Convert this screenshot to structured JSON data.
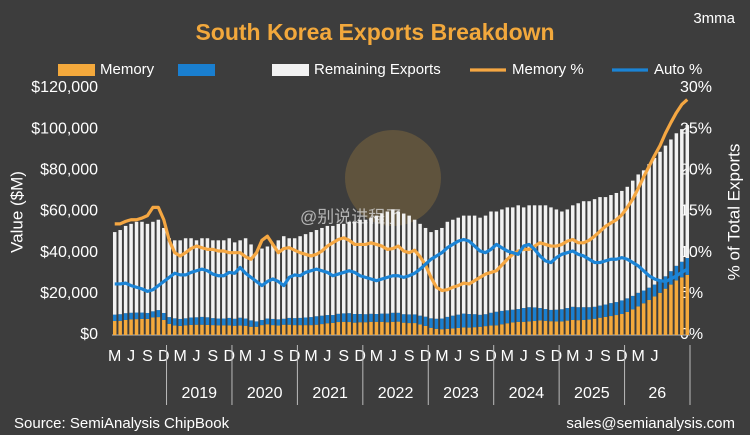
{
  "chart_data": {
    "type": "bar",
    "title": "South Korea Exports Breakdown",
    "subtitle": "3mma",
    "y_label": "Value ($M)",
    "y2_label": "% of Total Exports",
    "source": "Source: SemiAnalysis ChipBook",
    "contact": "sales@semianalysis.com",
    "watermark": "@别说进程了",
    "stacked": true,
    "grid": false,
    "categories": [
      "M",
      null,
      null,
      "J",
      null,
      null,
      "S",
      null,
      null,
      "D",
      null,
      null,
      "M",
      null,
      null,
      "J",
      null,
      null,
      "S",
      null,
      null,
      "D",
      null,
      null,
      "M",
      null,
      null,
      "J",
      null,
      null,
      "S",
      null,
      null,
      "D",
      null,
      null,
      "M",
      null,
      null,
      "J",
      null,
      null,
      "S",
      null,
      null,
      "D",
      null,
      null,
      "M",
      null,
      null,
      "J",
      null,
      null,
      "S",
      null,
      null,
      "D",
      null,
      null,
      "M",
      null,
      null,
      "J",
      null,
      null,
      "S",
      null,
      null,
      "D",
      null,
      null,
      "M",
      null,
      null,
      "J",
      null,
      null,
      "S",
      null,
      null,
      "D",
      null,
      null,
      "M",
      null,
      null,
      "J",
      null,
      null,
      "S",
      null,
      null,
      "D",
      null,
      null,
      "M",
      null,
      null,
      "J",
      null,
      null,
      null,
      null,
      null,
      null
    ],
    "year_labels": [
      "2019",
      "2020",
      "2021",
      "2022",
      "2023",
      "2024",
      "2025",
      "26"
    ],
    "ylim": [
      0,
      120000
    ],
    "yticks": [
      {
        "value": 0,
        "label": "$0"
      },
      {
        "value": 20000,
        "label": "$20,000"
      },
      {
        "value": 40000,
        "label": "$40,000"
      },
      {
        "value": 60000,
        "label": "$60,000"
      },
      {
        "value": 80000,
        "label": "$80,000"
      },
      {
        "value": 100000,
        "label": "$100,000"
      },
      {
        "value": 120000,
        "label": "$120,000"
      }
    ],
    "y2lim": [
      0,
      30
    ],
    "y2ticks": [
      {
        "value": 0,
        "label": "0%"
      },
      {
        "value": 5,
        "label": "5%"
      },
      {
        "value": 10,
        "label": "10%"
      },
      {
        "value": 15,
        "label": "15%"
      },
      {
        "value": 20,
        "label": "20%"
      },
      {
        "value": 25,
        "label": "25%"
      },
      {
        "value": 30,
        "label": "30%"
      }
    ],
    "series": [
      {
        "name": "Memory",
        "color": "#f4a93c",
        "values": [
          6800,
          6900,
          7300,
          7600,
          7700,
          7800,
          7800,
          8500,
          8700,
          7300,
          5400,
          4600,
          4400,
          4700,
          4900,
          5000,
          5000,
          4900,
          4800,
          4700,
          4700,
          4700,
          4500,
          4600,
          4500,
          4000,
          4000,
          4800,
          5200,
          4800,
          4600,
          5000,
          5000,
          4800,
          4800,
          4800,
          4800,
          5000,
          5300,
          5700,
          5900,
          6300,
          6400,
          6300,
          6000,
          6200,
          6200,
          6400,
          6400,
          6400,
          6200,
          6400,
          6500,
          6000,
          5800,
          5800,
          5100,
          4400,
          3500,
          3000,
          2800,
          3000,
          3200,
          3400,
          3700,
          3600,
          3800,
          4000,
          4300,
          4600,
          4700,
          5200,
          5700,
          6100,
          6400,
          6400,
          6600,
          6800,
          7100,
          6900,
          6700,
          6600,
          6600,
          7000,
          7300,
          7200,
          7300,
          7500,
          7900,
          8400,
          8800,
          9200,
          9700,
          10200,
          11200,
          12400,
          13900,
          15400,
          17000,
          18700,
          20500,
          22500,
          24500,
          26500,
          28000,
          29200
        ]
      },
      {
        "name": null,
        "color": "#1a7fd0",
        "values": [
          3100,
          3200,
          3300,
          3200,
          3200,
          3100,
          2900,
          3000,
          3400,
          3400,
          3300,
          3500,
          3400,
          3400,
          3600,
          3600,
          3800,
          3700,
          3400,
          3300,
          3300,
          3600,
          3400,
          3800,
          3500,
          3100,
          2600,
          2500,
          2800,
          3000,
          3000,
          2900,
          3300,
          3400,
          3500,
          3700,
          3900,
          4100,
          4100,
          4000,
          3800,
          4000,
          4100,
          4300,
          4200,
          4000,
          3900,
          3900,
          3800,
          4000,
          4200,
          4400,
          4300,
          4100,
          4200,
          4200,
          4300,
          4500,
          4600,
          4900,
          5200,
          5800,
          6200,
          6500,
          6700,
          6600,
          6300,
          5800,
          5800,
          6200,
          6600,
          6500,
          6300,
          6200,
          6200,
          6700,
          6900,
          6600,
          6000,
          5700,
          5500,
          5700,
          5900,
          6100,
          6400,
          6300,
          6200,
          6000,
          5800,
          5900,
          6000,
          6300,
          6300,
          6600,
          6600,
          6600,
          6600,
          6200,
          6000,
          5800,
          5900,
          6000,
          6500,
          7100,
          7600,
          8200
        ]
      },
      {
        "name": "Remaining Exports",
        "color": "#f2f2f2",
        "values": [
          40100,
          40900,
          42400,
          43200,
          44100,
          44100,
          43300,
          43500,
          43900,
          41300,
          38300,
          37900,
          38200,
          38900,
          38500,
          37400,
          38200,
          38400,
          37800,
          38000,
          38000,
          38700,
          37100,
          37600,
          39000,
          36900,
          33400,
          34700,
          35000,
          36200,
          38400,
          40100,
          38700,
          38800,
          39700,
          40500,
          41300,
          41900,
          42600,
          43300,
          43300,
          43700,
          43500,
          44400,
          44800,
          45800,
          45900,
          46700,
          47800,
          48600,
          49600,
          50200,
          49200,
          48900,
          48000,
          46000,
          44600,
          43100,
          41900,
          43100,
          44000,
          46200,
          46600,
          47100,
          47600,
          47800,
          47900,
          47200,
          47900,
          49200,
          48700,
          49300,
          50000,
          49700,
          50400,
          48900,
          49500,
          49600,
          49900,
          50400,
          49800,
          48700,
          47500,
          47900,
          49300,
          50500,
          51500,
          51500,
          52300,
          52700,
          52200,
          52500,
          53000,
          53200,
          54200,
          56000,
          57500,
          58400,
          60000,
          61500,
          62600,
          63500,
          64000,
          64400,
          64400,
          64600
        ]
      },
      {
        "name": "Memory %",
        "color": "#f5a742",
        "type": "line",
        "axis": "y2",
        "values": [
          13.5,
          13.5,
          13.8,
          14,
          14,
          14.2,
          14.5,
          15.5,
          15.5,
          14,
          11.5,
          10,
          9.6,
          10,
          10.5,
          10.8,
          10.6,
          10.4,
          10.4,
          10.2,
          10.2,
          10,
          10,
          10,
          9.5,
          9.2,
          10,
          11.5,
          12,
          11,
          10,
          10.5,
          10.6,
          10.3,
          10,
          9.8,
          9.6,
          9.8,
          10.2,
          10.8,
          11.2,
          11.6,
          11.8,
          11.5,
          11,
          11,
          11,
          11.2,
          11,
          10.8,
          10.4,
          10.5,
          10.8,
          10.2,
          10,
          10.3,
          9.5,
          8.5,
          7,
          5.8,
          5.4,
          5.5,
          5.8,
          6,
          6.3,
          6.2,
          6.6,
          7,
          7.4,
          7.6,
          7.8,
          8.5,
          9.2,
          9.8,
          10.2,
          10.4,
          10.4,
          10.8,
          11.2,
          11,
          10.8,
          10.8,
          11,
          11.4,
          11.6,
          11.2,
          11.2,
          11.5,
          12,
          12.6,
          13.2,
          13.6,
          14,
          14.6,
          15.5,
          16.5,
          17.8,
          19.2,
          20.5,
          21.8,
          23,
          24.5,
          25.8,
          27,
          28,
          28.6
        ]
      },
      {
        "name": "Auto %",
        "color": "#1b84d6",
        "type": "line",
        "axis": "y2",
        "values": [
          6.2,
          6.2,
          6.3,
          6,
          5.8,
          5.6,
          5.3,
          5.5,
          6,
          6.5,
          7,
          7.5,
          7.3,
          7.3,
          7.6,
          7.8,
          8,
          7.8,
          7.4,
          7.2,
          7.2,
          7.6,
          7.5,
          8.2,
          7.5,
          7,
          6.5,
          6,
          6.5,
          6.8,
          6.5,
          6,
          7,
          7.3,
          7.2,
          7.6,
          7.8,
          8,
          7.8,
          7.6,
          7.2,
          7.4,
          7.6,
          7.8,
          7.6,
          7.2,
          7,
          6.8,
          6.6,
          6.8,
          7,
          7.2,
          7.2,
          7,
          7.2,
          7.5,
          8,
          8.6,
          9.2,
          9.6,
          10,
          10.6,
          11,
          11.4,
          11.6,
          11.4,
          10.8,
          10.2,
          10,
          10.4,
          11,
          10.6,
          10.2,
          10,
          9.8,
          10.8,
          11,
          10.4,
          9.6,
          9,
          8.8,
          9.4,
          9.8,
          10,
          10.2,
          9.8,
          9.6,
          9.2,
          8.8,
          8.8,
          9,
          9.2,
          9.2,
          9.4,
          9.2,
          8.8,
          8.4,
          7.8,
          7.2,
          6.8,
          6.6,
          6.5,
          6.8,
          7.2,
          7.6,
          8
        ]
      }
    ]
  }
}
